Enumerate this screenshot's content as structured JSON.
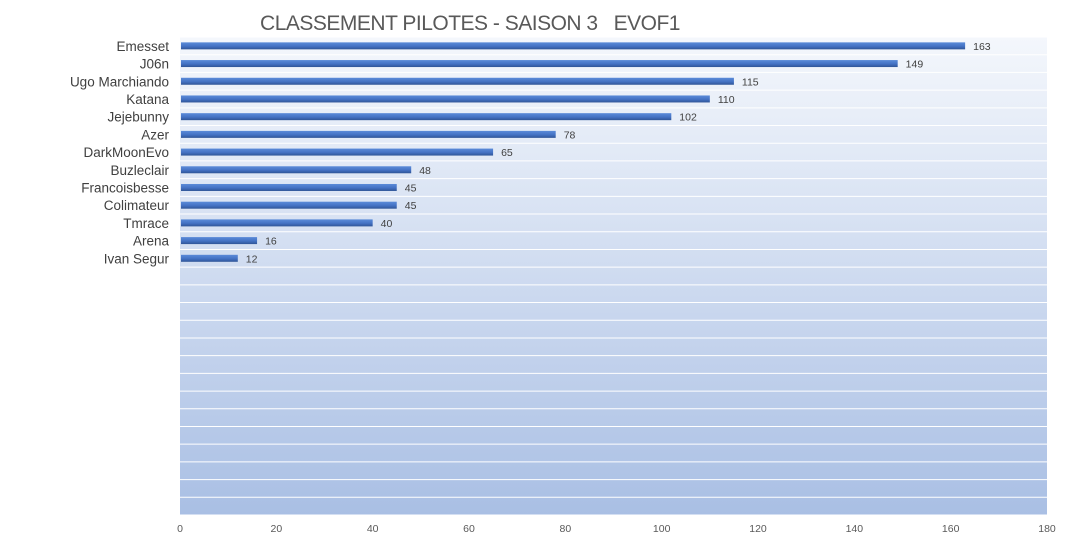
{
  "chart_data": {
    "type": "bar",
    "orientation": "horizontal",
    "title": "CLASSEMENT PILOTES - SAISON 3   EVOF1",
    "categories": [
      "Emesset",
      "J06n",
      "Ugo Marchiando",
      "Katana",
      "Jejebunny",
      "Azer",
      "DarkMoonEvo",
      "Buzleclair",
      "Francoisbesse",
      "Colimateur",
      "Tmrace",
      "Arena",
      "Ivan Segur"
    ],
    "values": [
      163,
      149,
      115,
      110,
      102,
      78,
      65,
      48,
      45,
      45,
      40,
      16,
      12
    ],
    "empty_slots": 14,
    "xlim": [
      0,
      180
    ],
    "x_ticks": [
      0,
      20,
      40,
      60,
      80,
      100,
      120,
      140,
      160,
      180
    ],
    "xlabel": "",
    "ylabel": "",
    "grid": "horizontal",
    "legend": "none",
    "data_labels": true,
    "colors": {
      "bar": "#4472c4",
      "bar_dark": "#2f5597",
      "bar_light": "#5b8bd9",
      "plot_bg_top": "#f4f7fc",
      "plot_bg_bottom": "#a9bfe4",
      "grid": "#ffffff"
    }
  }
}
